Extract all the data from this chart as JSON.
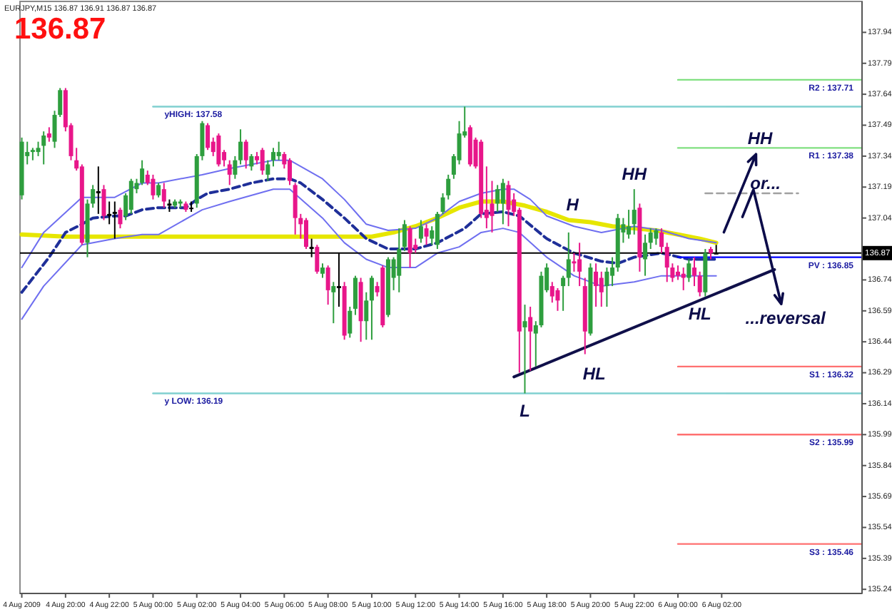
{
  "chart_data": {
    "type": "candlestick",
    "title": "EURJPY,M15 136.87 136.91 136.87 136.87",
    "x": [
      "2009-08-04T18:00",
      "2009-08-04T18:15",
      "2009-08-04T18:30",
      "2009-08-04T18:45",
      "2009-08-04T19:00",
      "2009-08-04T19:15",
      "2009-08-04T19:30",
      "2009-08-04T19:45",
      "2009-08-04T20:00",
      "2009-08-04T20:15",
      "2009-08-04T20:30",
      "2009-08-04T20:45",
      "2009-08-04T21:00",
      "2009-08-04T21:15",
      "2009-08-04T21:30",
      "2009-08-04T21:45",
      "2009-08-04T22:00",
      "2009-08-04T22:15",
      "2009-08-04T22:30",
      "2009-08-04T22:45",
      "2009-08-04T23:00",
      "2009-08-04T23:15",
      "2009-08-04T23:30",
      "2009-08-04T23:45",
      "2009-08-05T00:00",
      "2009-08-05T00:15",
      "2009-08-05T00:30",
      "2009-08-05T00:45",
      "2009-08-05T01:00",
      "2009-08-05T01:15",
      "2009-08-05T01:30",
      "2009-08-05T01:45",
      "2009-08-05T02:00",
      "2009-08-05T02:15",
      "2009-08-05T02:30",
      "2009-08-05T02:45",
      "2009-08-05T03:00",
      "2009-08-05T03:15",
      "2009-08-05T03:30",
      "2009-08-05T03:45",
      "2009-08-05T04:00",
      "2009-08-05T04:15",
      "2009-08-05T04:30",
      "2009-08-05T04:45",
      "2009-08-05T05:00",
      "2009-08-05T05:15",
      "2009-08-05T05:30",
      "2009-08-05T05:45",
      "2009-08-05T06:00",
      "2009-08-05T06:15",
      "2009-08-05T06:30",
      "2009-08-05T06:45",
      "2009-08-05T07:00",
      "2009-08-05T07:15",
      "2009-08-05T07:30",
      "2009-08-05T07:45",
      "2009-08-05T08:00",
      "2009-08-05T08:15",
      "2009-08-05T08:30",
      "2009-08-05T08:45",
      "2009-08-05T09:00",
      "2009-08-05T09:15",
      "2009-08-05T09:30",
      "2009-08-05T09:45",
      "2009-08-05T10:00",
      "2009-08-05T10:15",
      "2009-08-05T10:30",
      "2009-08-05T10:45",
      "2009-08-05T11:00",
      "2009-08-05T11:15",
      "2009-08-05T11:30",
      "2009-08-05T11:45",
      "2009-08-05T12:00",
      "2009-08-05T12:15",
      "2009-08-05T12:30",
      "2009-08-05T12:45",
      "2009-08-05T13:00",
      "2009-08-05T13:15",
      "2009-08-05T13:30",
      "2009-08-05T13:45",
      "2009-08-05T14:00",
      "2009-08-05T14:15",
      "2009-08-05T14:30",
      "2009-08-05T14:45",
      "2009-08-05T15:00",
      "2009-08-05T15:15",
      "2009-08-05T15:30",
      "2009-08-05T15:45",
      "2009-08-05T16:00",
      "2009-08-05T16:15",
      "2009-08-05T16:30",
      "2009-08-05T16:45",
      "2009-08-05T17:00",
      "2009-08-05T17:15",
      "2009-08-05T17:30",
      "2009-08-05T17:45",
      "2009-08-05T18:00",
      "2009-08-05T18:15",
      "2009-08-05T18:30",
      "2009-08-05T18:45",
      "2009-08-05T19:00",
      "2009-08-05T19:15",
      "2009-08-05T19:30",
      "2009-08-05T19:45",
      "2009-08-05T20:00",
      "2009-08-05T20:15",
      "2009-08-05T20:30",
      "2009-08-05T20:45",
      "2009-08-05T21:00",
      "2009-08-05T21:15",
      "2009-08-05T21:30",
      "2009-08-05T21:45",
      "2009-08-05T22:00",
      "2009-08-05T22:15",
      "2009-08-05T22:30",
      "2009-08-05T22:45",
      "2009-08-05T23:00",
      "2009-08-05T23:15",
      "2009-08-05T23:30",
      "2009-08-05T23:45",
      "2009-08-06T00:00",
      "2009-08-06T00:15",
      "2009-08-06T00:30",
      "2009-08-06T00:45",
      "2009-08-06T01:00",
      "2009-08-06T01:15",
      "2009-08-06T01:30",
      "2009-08-06T01:45"
    ],
    "ohlc": [
      [
        137.15,
        137.43,
        137.13,
        137.41
      ],
      [
        137.34,
        137.41,
        137.3,
        137.36
      ],
      [
        137.36,
        137.38,
        137.32,
        137.37
      ],
      [
        137.36,
        137.41,
        137.34,
        137.38
      ],
      [
        137.39,
        137.46,
        137.3,
        137.44
      ],
      [
        137.45,
        137.48,
        137.41,
        137.43
      ],
      [
        137.41,
        137.56,
        137.38,
        137.54
      ],
      [
        137.54,
        137.67,
        137.53,
        137.66
      ],
      [
        137.66,
        137.67,
        137.46,
        137.48
      ],
      [
        137.49,
        137.5,
        137.32,
        137.34
      ],
      [
        137.32,
        137.38,
        137.27,
        137.28
      ],
      [
        137.29,
        137.3,
        136.91,
        136.92
      ],
      [
        136.92,
        137.13,
        136.85,
        137.11
      ],
      [
        137.11,
        137.2,
        137.09,
        137.18
      ],
      [
        137.17,
        137.29,
        137.06,
        137.16
      ],
      [
        137.18,
        137.2,
        137.03,
        137.05
      ],
      [
        137.06,
        137.12,
        137.01,
        137.05
      ],
      [
        137.07,
        137.12,
        136.94,
        137.06
      ],
      [
        137.08,
        137.09,
        136.99,
        137.01
      ],
      [
        137.05,
        137.16,
        137.03,
        137.15
      ],
      [
        137.08,
        137.23,
        137.06,
        137.22
      ],
      [
        137.18,
        137.23,
        137.16,
        137.21
      ],
      [
        137.21,
        137.32,
        137.2,
        137.28
      ],
      [
        137.25,
        137.27,
        137.2,
        137.21
      ],
      [
        137.23,
        137.25,
        137.13,
        137.15
      ],
      [
        137.15,
        137.21,
        137.14,
        137.2
      ],
      [
        137.18,
        137.21,
        137.09,
        137.12
      ],
      [
        137.11,
        137.13,
        137.07,
        137.1
      ],
      [
        137.1,
        137.13,
        137.09,
        137.12
      ],
      [
        137.11,
        137.13,
        137.09,
        137.12
      ],
      [
        137.11,
        137.12,
        137.07,
        137.08
      ],
      [
        137.09,
        137.12,
        137.07,
        137.09
      ],
      [
        137.11,
        137.35,
        137.09,
        137.34
      ],
      [
        137.34,
        137.51,
        137.32,
        137.5
      ],
      [
        137.49,
        137.5,
        137.37,
        137.38
      ],
      [
        137.41,
        137.43,
        137.34,
        137.36
      ],
      [
        137.44,
        137.45,
        137.29,
        137.3
      ],
      [
        137.36,
        137.37,
        137.29,
        137.32
      ],
      [
        137.3,
        137.32,
        137.2,
        137.25
      ],
      [
        137.25,
        137.34,
        137.23,
        137.32
      ],
      [
        137.32,
        137.47,
        137.3,
        137.41
      ],
      [
        137.41,
        137.42,
        137.28,
        137.32
      ],
      [
        137.29,
        137.35,
        137.27,
        137.34
      ],
      [
        137.34,
        137.36,
        137.3,
        137.32
      ],
      [
        137.37,
        137.38,
        137.25,
        137.27
      ],
      [
        137.25,
        137.32,
        137.22,
        137.3
      ],
      [
        137.32,
        137.38,
        137.29,
        137.36
      ],
      [
        137.34,
        137.41,
        137.32,
        137.36
      ],
      [
        137.35,
        137.36,
        137.28,
        137.3
      ],
      [
        137.32,
        137.33,
        137.2,
        137.22
      ],
      [
        137.2,
        137.21,
        136.96,
        137.04
      ],
      [
        137.04,
        137.06,
        136.94,
        137.01
      ],
      [
        137.03,
        137.04,
        136.89,
        136.9
      ],
      [
        136.9,
        136.94,
        136.85,
        136.89
      ],
      [
        136.9,
        136.91,
        136.77,
        136.78
      ],
      [
        136.77,
        136.82,
        136.75,
        136.8
      ],
      [
        136.8,
        136.81,
        136.62,
        136.69
      ],
      [
        136.68,
        136.73,
        136.53,
        136.71
      ],
      [
        136.71,
        136.87,
        136.61,
        136.7
      ],
      [
        136.71,
        136.73,
        136.45,
        136.47
      ],
      [
        136.48,
        136.61,
        136.46,
        136.59
      ],
      [
        136.6,
        136.76,
        136.57,
        136.75
      ],
      [
        136.73,
        136.75,
        136.44,
        136.54
      ],
      [
        136.54,
        136.68,
        136.45,
        136.64
      ],
      [
        136.64,
        136.76,
        136.45,
        136.75
      ],
      [
        136.71,
        136.73,
        136.66,
        136.68
      ],
      [
        136.8,
        136.81,
        136.51,
        136.52
      ],
      [
        136.57,
        136.85,
        136.56,
        136.84
      ],
      [
        136.75,
        136.85,
        136.69,
        136.84
      ],
      [
        136.76,
        136.99,
        136.68,
        136.89
      ],
      [
        136.9,
        137.03,
        136.88,
        137.01
      ],
      [
        136.99,
        137.0,
        136.8,
        136.87
      ],
      [
        136.91,
        136.94,
        136.87,
        136.89
      ],
      [
        136.94,
        137.03,
        136.92,
        137.0
      ],
      [
        136.99,
        137.01,
        136.91,
        136.95
      ],
      [
        136.94,
        137.0,
        136.91,
        136.98
      ],
      [
        136.91,
        137.07,
        136.89,
        137.06
      ],
      [
        137.07,
        137.16,
        137.06,
        137.14
      ],
      [
        137.15,
        137.25,
        137.13,
        137.23
      ],
      [
        137.25,
        137.35,
        137.23,
        137.34
      ],
      [
        137.32,
        137.51,
        137.3,
        137.45
      ],
      [
        137.44,
        137.58,
        137.43,
        137.46
      ],
      [
        137.48,
        137.49,
        137.29,
        137.3
      ],
      [
        137.42,
        137.43,
        137.28,
        137.29
      ],
      [
        137.41,
        137.42,
        137.04,
        137.06
      ],
      [
        137.08,
        137.29,
        136.99,
        137.04
      ],
      [
        137.11,
        137.22,
        136.97,
        137.05
      ],
      [
        137.11,
        137.2,
        137.07,
        137.18
      ],
      [
        137.11,
        137.23,
        137.01,
        137.21
      ],
      [
        137.2,
        137.22,
        137.0,
        137.08
      ],
      [
        137.13,
        137.16,
        137.05,
        137.07
      ],
      [
        137.08,
        137.09,
        136.29,
        136.49
      ],
      [
        136.51,
        136.62,
        136.19,
        136.54
      ],
      [
        136.56,
        136.61,
        136.3,
        136.49
      ],
      [
        136.48,
        136.54,
        136.32,
        136.52
      ],
      [
        136.52,
        136.78,
        136.51,
        136.76
      ],
      [
        136.69,
        136.82,
        136.68,
        136.8
      ],
      [
        136.71,
        136.73,
        136.63,
        136.66
      ],
      [
        136.69,
        136.7,
        136.59,
        136.64
      ],
      [
        136.71,
        136.76,
        136.59,
        136.75
      ],
      [
        136.75,
        136.97,
        136.71,
        136.84
      ],
      [
        136.83,
        136.87,
        136.78,
        136.82
      ],
      [
        136.84,
        136.92,
        136.71,
        136.78
      ],
      [
        136.71,
        136.75,
        136.38,
        136.49
      ],
      [
        136.48,
        136.82,
        136.47,
        136.8
      ],
      [
        136.78,
        136.82,
        136.61,
        136.71
      ],
      [
        136.75,
        136.78,
        136.61,
        136.68
      ],
      [
        136.71,
        136.8,
        136.61,
        136.78
      ],
      [
        136.76,
        136.85,
        136.71,
        136.8
      ],
      [
        136.8,
        137.06,
        136.78,
        137.04
      ],
      [
        136.97,
        137.04,
        136.92,
        137.01
      ],
      [
        136.96,
        137.08,
        136.94,
        137.0
      ],
      [
        137.01,
        137.18,
        136.96,
        137.08
      ],
      [
        137.09,
        137.11,
        136.78,
        136.85
      ],
      [
        136.84,
        136.96,
        136.76,
        136.92
      ],
      [
        136.92,
        136.99,
        136.89,
        136.97
      ],
      [
        136.94,
        136.99,
        136.91,
        136.98
      ],
      [
        136.97,
        136.99,
        136.87,
        136.9
      ],
      [
        136.9,
        136.92,
        136.73,
        136.8
      ],
      [
        136.8,
        136.82,
        136.73,
        136.75
      ],
      [
        136.78,
        136.81,
        136.74,
        136.76
      ],
      [
        136.77,
        136.8,
        136.69,
        136.75
      ],
      [
        136.75,
        136.84,
        136.73,
        136.82
      ],
      [
        136.8,
        136.85,
        136.71,
        136.76
      ],
      [
        136.76,
        136.78,
        136.66,
        136.68
      ],
      [
        136.68,
        136.89,
        136.66,
        136.87
      ],
      [
        136.89,
        136.9,
        136.84,
        136.87
      ],
      [
        136.87,
        136.91,
        136.87,
        136.87
      ]
    ],
    "colors": [
      "#2e9e3e",
      "#2e9e3e",
      "#2e9e3e",
      "#2e9e3e",
      "#2e9e3e",
      "#e8168a",
      "#2e9e3e",
      "#2e9e3e",
      "#e8168a",
      "#e8168a",
      "#e8168a",
      "#e8168a",
      "#2e9e3e",
      "#2e9e3e",
      "#000000",
      "#e8168a",
      "#000000",
      "#000000",
      "#e8168a",
      "#2e9e3e",
      "#2e9e3e",
      "#2e9e3e",
      "#2e9e3e",
      "#e8168a",
      "#e8168a",
      "#2e9e3e",
      "#e8168a",
      "#000000",
      "#2e9e3e",
      "#2e9e3e",
      "#e8168a",
      "#000000",
      "#2e9e3e",
      "#2e9e3e",
      "#e8168a",
      "#e8168a",
      "#e8168a",
      "#e8168a",
      "#e8168a",
      "#2e9e3e",
      "#2e9e3e",
      "#e8168a",
      "#2e9e3e",
      "#e8168a",
      "#e8168a",
      "#2e9e3e",
      "#2e9e3e",
      "#2e9e3e",
      "#e8168a",
      "#e8168a",
      "#e8168a",
      "#e8168a",
      "#e8168a",
      "#000000",
      "#e8168a",
      "#2e9e3e",
      "#e8168a",
      "#2e9e3e",
      "#000000",
      "#e8168a",
      "#2e9e3e",
      "#2e9e3e",
      "#e8168a",
      "#2e9e3e",
      "#2e9e3e",
      "#e8168a",
      "#e8168a",
      "#2e9e3e",
      "#2e9e3e",
      "#2e9e3e",
      "#2e9e3e",
      "#e8168a",
      "#e8168a",
      "#2e9e3e",
      "#e8168a",
      "#2e9e3e",
      "#2e9e3e",
      "#2e9e3e",
      "#2e9e3e",
      "#2e9e3e",
      "#2e9e3e",
      "#2e9e3e",
      "#e8168a",
      "#e8168a",
      "#e8168a",
      "#e8168a",
      "#e8168a",
      "#2e9e3e",
      "#2e9e3e",
      "#e8168a",
      "#e8168a",
      "#e8168a",
      "#2e9e3e",
      "#e8168a",
      "#2e9e3e",
      "#2e9e3e",
      "#2e9e3e",
      "#e8168a",
      "#e8168a",
      "#2e9e3e",
      "#2e9e3e",
      "#e8168a",
      "#e8168a",
      "#e8168a",
      "#2e9e3e",
      "#e8168a",
      "#e8168a",
      "#2e9e3e",
      "#2e9e3e",
      "#2e9e3e",
      "#2e9e3e",
      "#2e9e3e",
      "#2e9e3e",
      "#e8168a",
      "#2e9e3e",
      "#2e9e3e",
      "#2e9e3e",
      "#e8168a",
      "#e8168a",
      "#e8168a",
      "#e8168a",
      "#e8168a",
      "#2e9e3e",
      "#e8168a",
      "#e8168a",
      "#2e9e3e",
      "#e8168a",
      "#000000"
    ],
    "series": [
      {
        "type": "line",
        "color": "#e6e600",
        "x": [
          "2009-08-04T18:00",
          "2009-08-04T20:00",
          "2009-08-04T22:00",
          "2009-08-05T00:00",
          "2009-08-05T02:00",
          "2009-08-05T04:00",
          "2009-08-05T06:00",
          "2009-08-05T08:00",
          "2009-08-05T09:00",
          "2009-08-05T10:00",
          "2009-08-05T11:00",
          "2009-08-05T12:00",
          "2009-08-05T13:00",
          "2009-08-05T14:00",
          "2009-08-05T15:00",
          "2009-08-05T16:00",
          "2009-08-05T17:00",
          "2009-08-05T18:00",
          "2009-08-05T19:00",
          "2009-08-05T20:00",
          "2009-08-05T21:00",
          "2009-08-05T22:00",
          "2009-08-05T23:00",
          "2009-08-06T00:00",
          "2009-08-06T01:00",
          "2009-08-06T01:45"
        ],
        "values": [
          136.96,
          136.95,
          136.95,
          136.95,
          136.95,
          136.95,
          136.95,
          136.95,
          136.95,
          136.95,
          136.97,
          137.0,
          137.04,
          137.09,
          137.12,
          137.12,
          137.1,
          137.07,
          137.03,
          137.02,
          137.0,
          136.99,
          136.98,
          136.96,
          136.94,
          136.92
        ]
      },
      {
        "type": "line",
        "color": "#1f2f99",
        "line_style": "dashed",
        "x": [
          "2009-08-04T18:00",
          "2009-08-04T19:15",
          "2009-08-04T20:00",
          "2009-08-04T20:45",
          "2009-08-04T21:15",
          "2009-08-04T22:15",
          "2009-08-04T22:45",
          "2009-08-04T23:30",
          "2009-08-05T00:15",
          "2009-08-05T01:30",
          "2009-08-05T02:00",
          "2009-08-05T02:30",
          "2009-08-05T03:30",
          "2009-08-05T04:30",
          "2009-08-05T05:30",
          "2009-08-05T06:15",
          "2009-08-05T06:45",
          "2009-08-05T07:45",
          "2009-08-05T08:45",
          "2009-08-05T09:45",
          "2009-08-05T10:45",
          "2009-08-05T12:00",
          "2009-08-05T13:00",
          "2009-08-05T14:15",
          "2009-08-05T15:00",
          "2009-08-05T16:00",
          "2009-08-05T16:45",
          "2009-08-05T18:00",
          "2009-08-05T19:15",
          "2009-08-05T20:30",
          "2009-08-05T21:15",
          "2009-08-05T22:00",
          "2009-08-05T23:15",
          "2009-08-06T00:30",
          "2009-08-06T01:45"
        ],
        "values": [
          136.68,
          136.85,
          136.97,
          137.01,
          137.04,
          137.05,
          137.05,
          137.08,
          137.09,
          137.09,
          137.13,
          137.16,
          137.18,
          137.21,
          137.23,
          137.23,
          137.21,
          137.13,
          137.04,
          136.94,
          136.89,
          136.89,
          136.92,
          136.99,
          137.06,
          137.07,
          137.05,
          136.94,
          136.87,
          136.83,
          136.82,
          136.85,
          136.87,
          136.84,
          136.84
        ]
      },
      {
        "type": "line",
        "color": "#6f6ff0",
        "x": [
          "2009-08-04T18:00",
          "2009-08-04T19:00",
          "2009-08-04T20:45",
          "2009-08-04T22:15",
          "2009-08-04T23:30",
          "2009-08-05T00:15",
          "2009-08-05T02:15",
          "2009-08-05T03:30",
          "2009-08-05T05:30",
          "2009-08-05T06:15",
          "2009-08-05T07:45",
          "2009-08-05T08:45",
          "2009-08-05T09:45",
          "2009-08-05T10:45",
          "2009-08-05T12:00",
          "2009-08-05T13:00",
          "2009-08-05T14:00",
          "2009-08-05T15:00",
          "2009-08-05T16:00",
          "2009-08-05T16:30",
          "2009-08-05T17:15",
          "2009-08-05T18:00",
          "2009-08-05T19:15",
          "2009-08-05T20:30",
          "2009-08-05T22:00",
          "2009-08-05T23:15",
          "2009-08-06T00:30",
          "2009-08-06T01:45"
        ],
        "values": [
          136.8,
          136.97,
          137.14,
          137.14,
          137.21,
          137.21,
          137.25,
          137.28,
          137.32,
          137.32,
          137.23,
          137.13,
          137.01,
          136.98,
          136.99,
          137.04,
          137.12,
          137.16,
          137.18,
          137.18,
          137.13,
          137.05,
          137.0,
          136.97,
          137.0,
          136.98,
          136.94,
          136.92
        ]
      },
      {
        "type": "line",
        "color": "#6f6ff0",
        "x": [
          "2009-08-04T18:00",
          "2009-08-04T19:00",
          "2009-08-04T20:45",
          "2009-08-04T22:15",
          "2009-08-04T23:30",
          "2009-08-05T00:15",
          "2009-08-05T02:15",
          "2009-08-05T03:30",
          "2009-08-05T05:30",
          "2009-08-05T06:15",
          "2009-08-05T07:45",
          "2009-08-05T08:45",
          "2009-08-05T09:45",
          "2009-08-05T10:45",
          "2009-08-05T12:00",
          "2009-08-05T13:00",
          "2009-08-05T14:00",
          "2009-08-05T15:00",
          "2009-08-05T16:00",
          "2009-08-05T16:45",
          "2009-08-05T18:00",
          "2009-08-05T19:15",
          "2009-08-05T20:30",
          "2009-08-05T22:00",
          "2009-08-05T23:15",
          "2009-08-06T00:30",
          "2009-08-06T01:45"
        ],
        "values": [
          136.55,
          136.71,
          136.91,
          136.94,
          136.96,
          136.96,
          137.08,
          137.12,
          137.18,
          137.18,
          137.04,
          136.92,
          136.84,
          136.8,
          136.8,
          136.87,
          136.9,
          136.97,
          136.99,
          136.97,
          136.85,
          136.76,
          136.71,
          136.73,
          136.76,
          136.76,
          136.76
        ]
      },
      {
        "type": "line",
        "name": "yHIGH: 137.58",
        "color": "#80d0d0",
        "x": [
          "2009-08-05T00:00",
          "2009-08-06T08:25"
        ],
        "values": [
          137.58,
          137.58
        ]
      },
      {
        "type": "line",
        "name": "y LOW: 136.19",
        "color": "#80d0d0",
        "x": [
          "2009-08-05T00:00",
          "2009-08-06T08:25"
        ],
        "values": [
          136.19,
          136.19
        ]
      },
      {
        "type": "line",
        "name": "R2 : 137.71",
        "color": "#80e080",
        "x": [
          "2009-08-06T00:00",
          "2009-08-06T08:25"
        ],
        "values": [
          137.71,
          137.71
        ]
      },
      {
        "type": "line",
        "name": "R1 : 137.38",
        "color": "#80e080",
        "x": [
          "2009-08-06T00:00",
          "2009-08-06T08:25"
        ],
        "values": [
          137.38,
          137.38
        ]
      },
      {
        "type": "line",
        "name": "PV : 136.85",
        "color": "#0000ff",
        "x": [
          "2009-08-06T00:00",
          "2009-08-06T08:25"
        ],
        "values": [
          136.85,
          136.85
        ]
      },
      {
        "type": "line",
        "name": "S1 : 136.32",
        "color": "#ff7070",
        "x": [
          "2009-08-06T00:00",
          "2009-08-06T08:25"
        ],
        "values": [
          136.32,
          136.32
        ]
      },
      {
        "type": "line",
        "name": "S2 : 135.99",
        "color": "#ff7070",
        "x": [
          "2009-08-06T00:00",
          "2009-08-06T08:25"
        ],
        "values": [
          135.99,
          135.99
        ]
      },
      {
        "type": "line",
        "name": "S3 : 135.46",
        "color": "#ff7070",
        "x": [
          "2009-08-06T00:00",
          "2009-08-06T08:25"
        ],
        "values": [
          135.46,
          135.46
        ]
      },
      {
        "type": "line",
        "color": "#a0a0a0",
        "line_style": "dashed",
        "x": [
          "2009-08-06T01:15",
          "2009-08-06T05:30"
        ],
        "values": [
          137.16,
          137.16
        ]
      },
      {
        "type": "line",
        "color": "#10104a",
        "x": [
          "2009-08-05T16:30",
          "2009-08-06T04:25"
        ],
        "values": [
          136.27,
          136.79
        ]
      }
    ],
    "xlim": [
      "2009-08-04T17:55",
      "2009-08-06T08:25"
    ],
    "xticks": [
      {
        "value": "2009-08-04T18:00",
        "label": "4 Aug 2009"
      },
      {
        "value": "2009-08-04T20:00",
        "label": "4 Aug 20:00"
      },
      {
        "value": "2009-08-04T22:00",
        "label": "4 Aug 22:00"
      },
      {
        "value": "2009-08-05T00:00",
        "label": "5 Aug 00:00"
      },
      {
        "value": "2009-08-05T02:00",
        "label": "5 Aug 02:00"
      },
      {
        "value": "2009-08-05T04:00",
        "label": "5 Aug 04:00"
      },
      {
        "value": "2009-08-05T06:00",
        "label": "5 Aug 06:00"
      },
      {
        "value": "2009-08-05T08:00",
        "label": "5 Aug 08:00"
      },
      {
        "value": "2009-08-05T10:00",
        "label": "5 Aug 10:00"
      },
      {
        "value": "2009-08-05T12:00",
        "label": "5 Aug 12:00"
      },
      {
        "value": "2009-08-05T14:00",
        "label": "5 Aug 14:00"
      },
      {
        "value": "2009-08-05T16:00",
        "label": "5 Aug 16:00"
      },
      {
        "value": "2009-08-05T18:00",
        "label": "5 Aug 18:00"
      },
      {
        "value": "2009-08-05T20:00",
        "label": "5 Aug 20:00"
      },
      {
        "value": "2009-08-05T22:00",
        "label": "5 Aug 22:00"
      },
      {
        "value": "2009-08-06T00:00",
        "label": "6 Aug 00:00"
      },
      {
        "value": "2009-08-06T02:00",
        "label": "6 Aug 02:00"
      }
    ],
    "ylim": [
      135.22,
      138.09
    ],
    "yticks": [
      137.94,
      137.79,
      137.64,
      137.49,
      137.34,
      137.19,
      137.04,
      136.74,
      136.59,
      136.44,
      136.29,
      136.14,
      135.99,
      135.84,
      135.69,
      135.54,
      135.39,
      135.24
    ],
    "ref_lines": [
      {
        "axis": "y",
        "value": 136.87,
        "label": "136.87",
        "color": "#000000"
      }
    ],
    "annotations": [
      "136.87",
      "H",
      {
        "text": "HH",
        "x": "2009-08-05T22:00",
        "y": 137.18
      },
      {
        "text": "HH",
        "x": "2009-08-06T03:45",
        "y": 137.38
      },
      {
        "text": "or...",
        "x": "2009-08-06T04:00",
        "y": 137.16
      },
      {
        "text": "L",
        "x": "2009-08-05T17:00",
        "y": 136.19
      },
      "HL",
      {
        "text": "HL",
        "x": "2009-08-06T01:00",
        "y": 136.66
      },
      "...reversal"
    ]
  }
}
